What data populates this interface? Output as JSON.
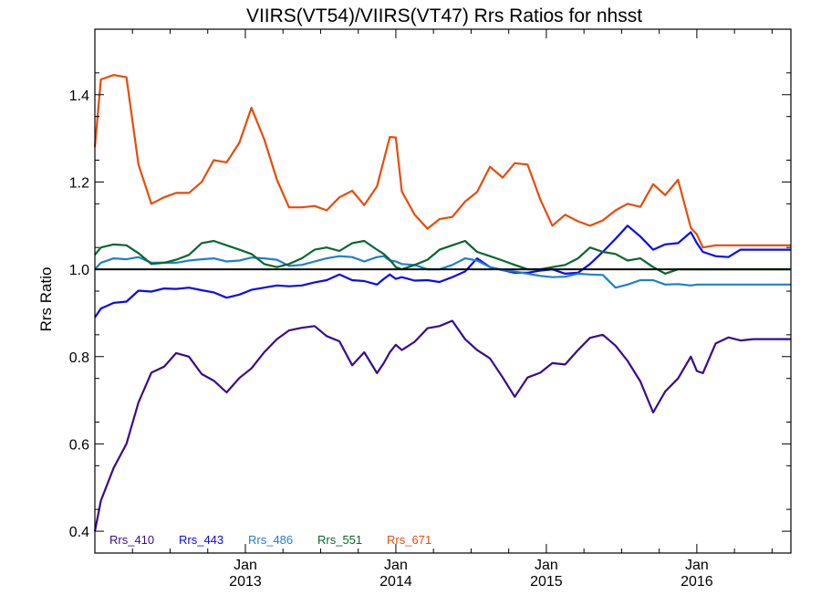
{
  "chart_data": {
    "type": "line",
    "title": "VIIRS(VT54)/VIIRS(VT47)  Rrs Ratios for nhsst",
    "ylabel": "Rrs Ratio",
    "xlabel": "",
    "ylim": [
      0.35,
      1.55
    ],
    "xlim": [
      2012.0,
      2016.625
    ],
    "yticks": [
      0.4,
      0.6,
      0.8,
      1.0,
      1.2,
      1.4
    ],
    "ytick_labels": [
      "0.4",
      "0.6",
      "0.8",
      "1.0",
      "1.2",
      "1.4"
    ],
    "xticks": [
      {
        "x": 2013.0,
        "month": "Jan",
        "year": "2013"
      },
      {
        "x": 2014.0,
        "month": "Jan",
        "year": "2014"
      },
      {
        "x": 2015.0,
        "month": "Jan",
        "year": "2015"
      },
      {
        "x": 2016.0,
        "month": "Jan",
        "year": "2016"
      }
    ],
    "reference_line": 1.0,
    "grid": false,
    "legend_position": "bottom-left",
    "series": [
      {
        "name": "Rrs_410",
        "color": "#3a0a8c",
        "x": [
          2012.0,
          2012.04,
          2012.125,
          2012.21,
          2012.29,
          2012.375,
          2012.46,
          2012.54,
          2012.625,
          2012.71,
          2012.79,
          2012.875,
          2012.96,
          2013.04,
          2013.125,
          2013.21,
          2013.29,
          2013.375,
          2013.46,
          2013.54,
          2013.625,
          2013.71,
          2013.79,
          2013.875,
          2013.92,
          2013.96,
          2014.0,
          2014.04,
          2014.125,
          2014.21,
          2014.29,
          2014.375,
          2014.46,
          2014.54,
          2014.625,
          2014.71,
          2014.79,
          2014.875,
          2014.96,
          2015.04,
          2015.125,
          2015.21,
          2015.29,
          2015.375,
          2015.46,
          2015.54,
          2015.625,
          2015.71,
          2015.79,
          2015.875,
          2015.96,
          2016.0,
          2016.04,
          2016.125,
          2016.21,
          2016.29,
          2016.375,
          2016.46,
          2016.54,
          2016.625
        ],
        "values": [
          0.4,
          0.47,
          0.545,
          0.6,
          0.695,
          0.763,
          0.777,
          0.808,
          0.8,
          0.76,
          0.745,
          0.718,
          0.751,
          0.773,
          0.81,
          0.84,
          0.86,
          0.866,
          0.87,
          0.847,
          0.835,
          0.78,
          0.81,
          0.762,
          0.785,
          0.81,
          0.827,
          0.815,
          0.834,
          0.865,
          0.87,
          0.882,
          0.84,
          0.815,
          0.796,
          0.752,
          0.708,
          0.752,
          0.763,
          0.785,
          0.782,
          0.815,
          0.843,
          0.85,
          0.825,
          0.79,
          0.743,
          0.672,
          0.72,
          0.75,
          0.8,
          0.767,
          0.762,
          0.83,
          0.844,
          0.837,
          0.84,
          0.84,
          0.84,
          0.84
        ]
      },
      {
        "name": "Rrs_443",
        "color": "#0a0af0",
        "x": [
          2012.0,
          2012.04,
          2012.125,
          2012.21,
          2012.29,
          2012.375,
          2012.46,
          2012.54,
          2012.625,
          2012.71,
          2012.79,
          2012.875,
          2012.96,
          2013.04,
          2013.125,
          2013.21,
          2013.29,
          2013.375,
          2013.46,
          2013.54,
          2013.625,
          2013.71,
          2013.79,
          2013.875,
          2013.92,
          2013.96,
          2014.0,
          2014.04,
          2014.125,
          2014.21,
          2014.29,
          2014.375,
          2014.46,
          2014.54,
          2014.625,
          2014.71,
          2014.79,
          2014.875,
          2014.96,
          2015.04,
          2015.125,
          2015.21,
          2015.29,
          2015.375,
          2015.46,
          2015.54,
          2015.625,
          2015.71,
          2015.79,
          2015.875,
          2015.96,
          2016.0,
          2016.04,
          2016.125,
          2016.21,
          2016.29,
          2016.375,
          2016.46,
          2016.54,
          2016.625
        ],
        "values": [
          0.89,
          0.91,
          0.923,
          0.926,
          0.951,
          0.949,
          0.956,
          0.955,
          0.958,
          0.952,
          0.947,
          0.935,
          0.942,
          0.953,
          0.958,
          0.963,
          0.961,
          0.963,
          0.97,
          0.975,
          0.988,
          0.975,
          0.973,
          0.965,
          0.978,
          0.988,
          0.978,
          0.982,
          0.974,
          0.975,
          0.971,
          0.982,
          0.995,
          1.025,
          1.005,
          0.998,
          0.992,
          0.992,
          0.997,
          1.0,
          0.99,
          0.992,
          1.012,
          1.04,
          1.07,
          1.1,
          1.075,
          1.045,
          1.057,
          1.06,
          1.085,
          1.06,
          1.04,
          1.03,
          1.028,
          1.045,
          1.045,
          1.045,
          1.045,
          1.045
        ]
      },
      {
        "name": "Rrs_486",
        "color": "#1e7fd0",
        "x": [
          2012.0,
          2012.04,
          2012.125,
          2012.21,
          2012.29,
          2012.375,
          2012.46,
          2012.54,
          2012.625,
          2012.71,
          2012.79,
          2012.875,
          2012.96,
          2013.04,
          2013.125,
          2013.21,
          2013.29,
          2013.375,
          2013.46,
          2013.54,
          2013.625,
          2013.71,
          2013.79,
          2013.875,
          2013.92,
          2013.96,
          2014.0,
          2014.04,
          2014.125,
          2014.21,
          2014.29,
          2014.375,
          2014.46,
          2014.54,
          2014.625,
          2014.71,
          2014.79,
          2014.875,
          2014.96,
          2015.04,
          2015.125,
          2015.21,
          2015.29,
          2015.375,
          2015.46,
          2015.54,
          2015.625,
          2015.71,
          2015.79,
          2015.875,
          2015.96,
          2016.0,
          2016.04,
          2016.125,
          2016.21,
          2016.29,
          2016.375,
          2016.46,
          2016.54,
          2016.625
        ],
        "values": [
          1.0,
          1.015,
          1.025,
          1.023,
          1.028,
          1.015,
          1.015,
          1.015,
          1.02,
          1.023,
          1.025,
          1.018,
          1.02,
          1.027,
          1.025,
          1.022,
          1.008,
          1.01,
          1.018,
          1.025,
          1.03,
          1.028,
          1.018,
          1.028,
          1.03,
          1.02,
          1.018,
          1.012,
          1.01,
          1.0,
          1.0,
          1.01,
          1.025,
          1.02,
          1.005,
          0.998,
          0.995,
          0.99,
          0.985,
          0.982,
          0.983,
          0.99,
          0.988,
          0.987,
          0.958,
          0.965,
          0.975,
          0.975,
          0.965,
          0.966,
          0.963,
          0.965,
          0.965,
          0.965,
          0.965,
          0.965,
          0.965,
          0.965,
          0.965,
          0.965
        ]
      },
      {
        "name": "Rrs_551",
        "color": "#0a6630",
        "x": [
          2012.0,
          2012.04,
          2012.125,
          2012.21,
          2012.29,
          2012.375,
          2012.46,
          2012.54,
          2012.625,
          2012.71,
          2012.79,
          2012.875,
          2012.96,
          2013.04,
          2013.125,
          2013.21,
          2013.29,
          2013.375,
          2013.46,
          2013.54,
          2013.625,
          2013.71,
          2013.79,
          2013.875,
          2013.92,
          2013.96,
          2014.0,
          2014.04,
          2014.125,
          2014.21,
          2014.29,
          2014.375,
          2014.46,
          2014.54,
          2014.625,
          2014.71,
          2014.79,
          2014.875,
          2014.96,
          2015.04,
          2015.125,
          2015.21,
          2015.29,
          2015.375,
          2015.46,
          2015.54,
          2015.625,
          2015.71,
          2015.79,
          2015.875,
          2015.96,
          2016.0,
          2016.04,
          2016.125,
          2016.21,
          2016.29,
          2016.375,
          2016.46,
          2016.54,
          2016.625
        ],
        "values": [
          1.033,
          1.05,
          1.057,
          1.055,
          1.037,
          1.012,
          1.015,
          1.022,
          1.033,
          1.06,
          1.065,
          1.055,
          1.045,
          1.035,
          1.012,
          1.005,
          1.012,
          1.025,
          1.045,
          1.05,
          1.042,
          1.06,
          1.065,
          1.045,
          1.035,
          1.022,
          1.005,
          1.0,
          1.01,
          1.022,
          1.045,
          1.055,
          1.065,
          1.04,
          1.03,
          1.02,
          1.01,
          1.0,
          1.0,
          1.005,
          1.01,
          1.025,
          1.05,
          1.04,
          1.035,
          1.02,
          1.025,
          1.005,
          0.99,
          1.0,
          1.0,
          1.0,
          1.0,
          1.0,
          1.0,
          1.0,
          1.0,
          1.0,
          1.0,
          1.0
        ]
      },
      {
        "name": "Rrs_671",
        "color": "#e64c0a",
        "x": [
          2012.0,
          2012.04,
          2012.125,
          2012.21,
          2012.29,
          2012.375,
          2012.46,
          2012.54,
          2012.625,
          2012.71,
          2012.79,
          2012.875,
          2012.96,
          2013.04,
          2013.125,
          2013.21,
          2013.29,
          2013.375,
          2013.46,
          2013.54,
          2013.625,
          2013.71,
          2013.79,
          2013.875,
          2013.92,
          2013.96,
          2014.0,
          2014.04,
          2014.125,
          2014.21,
          2014.29,
          2014.375,
          2014.46,
          2014.54,
          2014.625,
          2014.71,
          2014.79,
          2014.875,
          2014.96,
          2015.04,
          2015.125,
          2015.21,
          2015.29,
          2015.375,
          2015.46,
          2015.54,
          2015.625,
          2015.71,
          2015.79,
          2015.875,
          2015.96,
          2016.0,
          2016.04,
          2016.125,
          2016.21,
          2016.29,
          2016.375,
          2016.46,
          2016.54,
          2016.625
        ],
        "values": [
          1.28,
          1.435,
          1.445,
          1.44,
          1.24,
          1.15,
          1.165,
          1.175,
          1.175,
          1.2,
          1.25,
          1.245,
          1.29,
          1.37,
          1.298,
          1.205,
          1.142,
          1.142,
          1.145,
          1.135,
          1.165,
          1.18,
          1.147,
          1.19,
          1.25,
          1.303,
          1.302,
          1.178,
          1.125,
          1.093,
          1.115,
          1.12,
          1.155,
          1.177,
          1.235,
          1.21,
          1.243,
          1.24,
          1.16,
          1.1,
          1.125,
          1.11,
          1.1,
          1.112,
          1.135,
          1.15,
          1.143,
          1.195,
          1.17,
          1.205,
          1.095,
          1.08,
          1.05,
          1.055,
          1.055,
          1.055,
          1.055,
          1.055,
          1.055,
          1.055
        ]
      }
    ]
  }
}
